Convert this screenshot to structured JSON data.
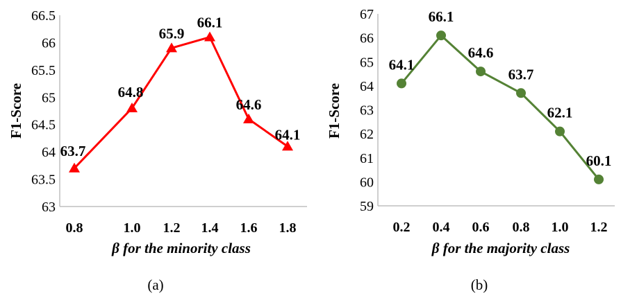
{
  "chart_data": [
    {
      "type": "line",
      "color": "#ff0000",
      "marker": "triangle",
      "categories": [
        "0.8",
        "1.0",
        "1.2",
        "1.4",
        "1.6",
        "1.8"
      ],
      "values": [
        63.7,
        64.8,
        65.9,
        66.1,
        64.6,
        64.1
      ],
      "data_labels": [
        "63.7",
        "64.8",
        "65.9",
        "66.1",
        "64.6",
        "64.1"
      ],
      "ylim": [
        63,
        66.5
      ],
      "yticks": [
        "63",
        "63.5",
        "64",
        "64.5",
        "65",
        "65.5",
        "66",
        "66.5"
      ],
      "ylabel": "F1-Score",
      "xlabel": "β for the minority class",
      "caption": "(a)",
      "grid": false
    },
    {
      "type": "line",
      "color": "#548235",
      "marker": "circle",
      "categories": [
        "0.2",
        "0.4",
        "0.6",
        "0.8",
        "1.0",
        "1.2"
      ],
      "values": [
        64.1,
        66.1,
        64.6,
        63.7,
        62.1,
        60.1
      ],
      "data_labels": [
        "64.1",
        "66.1",
        "64.6",
        "63.7",
        "62.1",
        "60.1"
      ],
      "ylim": [
        59,
        67
      ],
      "yticks": [
        "59",
        "60",
        "61",
        "62",
        "63",
        "64",
        "65",
        "66",
        "67"
      ],
      "ylabel": "F1-Score",
      "xlabel": "β for the majority class",
      "caption": "(b)",
      "grid": false
    }
  ]
}
